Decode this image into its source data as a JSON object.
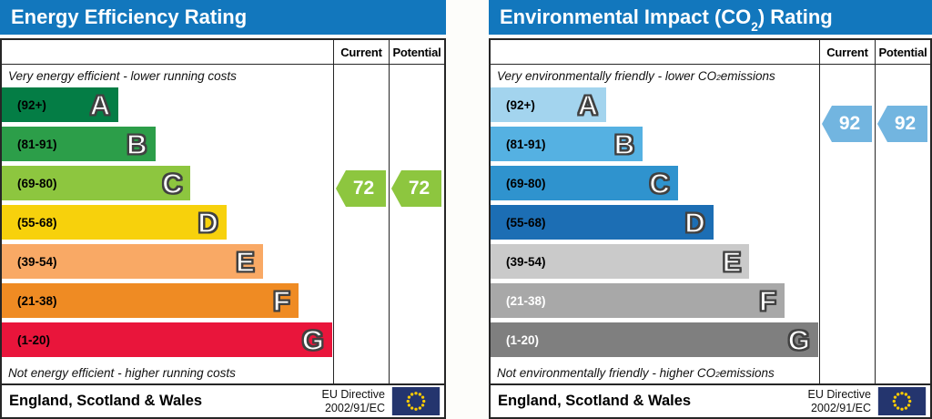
{
  "colors": {
    "header_blue": "#1277bd",
    "table_border": "#262626",
    "flag_navy": "#24356e",
    "flag_star": "#ffcc00"
  },
  "panels": {
    "energy": {
      "title": "Energy Efficiency Rating",
      "columns": {
        "current": "Current",
        "potential": "Potential"
      },
      "top_caption": "Very energy efficient - lower running costs",
      "bottom_caption": "Not energy efficient - higher running costs",
      "bands": [
        {
          "letter": "A",
          "range": "(92+)",
          "color": "#047d45",
          "label_color": "#000000",
          "width_pct": 35.2
        },
        {
          "letter": "B",
          "range": "(81-91)",
          "color": "#2c9e49",
          "label_color": "#000000",
          "width_pct": 46.3
        },
        {
          "letter": "C",
          "range": "(69-80)",
          "color": "#8dc63f",
          "label_color": "#000000",
          "width_pct": 57.0
        },
        {
          "letter": "D",
          "range": "(55-68)",
          "color": "#f7d10c",
          "label_color": "#000000",
          "width_pct": 67.8
        },
        {
          "letter": "E",
          "range": "(39-54)",
          "color": "#f9a965",
          "label_color": "#000000",
          "width_pct": 78.8
        },
        {
          "letter": "F",
          "range": "(21-38)",
          "color": "#ef8b23",
          "label_color": "#000000",
          "width_pct": 89.5
        },
        {
          "letter": "G",
          "range": "(1-20)",
          "color": "#e9153b",
          "label_color": "#000000",
          "width_pct": 99.7
        }
      ],
      "current_value": "72",
      "potential_value": "72",
      "arrow_color": "#8dc63f",
      "footer": {
        "region": "England, Scotland & Wales",
        "directive_line1": "EU Directive",
        "directive_line2": "2002/91/EC",
        "flag_icon": "eu-flag"
      }
    },
    "environmental": {
      "title_parts": {
        "pre": "Environmental Impact (CO",
        "sub": "2",
        "post": ") Rating"
      },
      "columns": {
        "current": "Current",
        "potential": "Potential"
      },
      "top_caption_parts": {
        "pre": "Very environmentally friendly - lower CO",
        "sub": "2",
        "post": " emissions"
      },
      "bottom_caption_parts": {
        "pre": "Not environmentally friendly - higher CO",
        "sub": "2",
        "post": " emissions"
      },
      "bands": [
        {
          "letter": "A",
          "range": "(92+)",
          "color": "#a3d4ee",
          "label_color": "#000000",
          "width_pct": 35.2
        },
        {
          "letter": "B",
          "range": "(81-91)",
          "color": "#55b1e2",
          "label_color": "#000000",
          "width_pct": 46.3
        },
        {
          "letter": "C",
          "range": "(69-80)",
          "color": "#2f93ce",
          "label_color": "#000000",
          "width_pct": 57.0
        },
        {
          "letter": "D",
          "range": "(55-68)",
          "color": "#1c6eb4",
          "label_color": "#000000",
          "width_pct": 67.8
        },
        {
          "letter": "E",
          "range": "(39-54)",
          "color": "#cacaca",
          "label_color": "#000000",
          "width_pct": 78.8
        },
        {
          "letter": "F",
          "range": "(21-38)",
          "color": "#a8a8a8",
          "label_color": "#ffffff",
          "width_pct": 89.5
        },
        {
          "letter": "G",
          "range": "(1-20)",
          "color": "#7f7f7f",
          "label_color": "#ffffff",
          "width_pct": 99.7
        }
      ],
      "current_value": "92",
      "potential_value": "92",
      "arrow_color": "#72b5e0",
      "footer": {
        "region": "England, Scotland & Wales",
        "directive_line1": "EU Directive",
        "directive_line2": "2002/91/EC",
        "flag_icon": "eu-flag"
      }
    }
  },
  "chart_data": [
    {
      "type": "bar",
      "title": "Energy Efficiency Rating",
      "categories": [
        "A (92+)",
        "B (81-91)",
        "C (69-80)",
        "D (55-68)",
        "E (39-54)",
        "F (21-38)",
        "G (1-20)"
      ],
      "series": [
        {
          "name": "Current",
          "values": [
            72
          ]
        },
        {
          "name": "Potential",
          "values": [
            72
          ]
        }
      ],
      "current": 72,
      "current_band": "C",
      "potential": 72,
      "potential_band": "C",
      "top_label": "Very energy efficient - lower running costs",
      "bottom_label": "Not energy efficient - higher running costs",
      "region": "England, Scotland & Wales",
      "directive": "EU Directive 2002/91/EC"
    },
    {
      "type": "bar",
      "title": "Environmental Impact (CO2) Rating",
      "categories": [
        "A (92+)",
        "B (81-91)",
        "C (69-80)",
        "D (55-68)",
        "E (39-54)",
        "F (21-38)",
        "G (1-20)"
      ],
      "series": [
        {
          "name": "Current",
          "values": [
            92
          ]
        },
        {
          "name": "Potential",
          "values": [
            92
          ]
        }
      ],
      "current": 92,
      "current_band": "A",
      "potential": 92,
      "potential_band": "A",
      "top_label": "Very environmentally friendly - lower CO2 emissions",
      "bottom_label": "Not environmentally friendly - higher CO2 emissions",
      "region": "England, Scotland & Wales",
      "directive": "EU Directive 2002/91/EC"
    }
  ]
}
